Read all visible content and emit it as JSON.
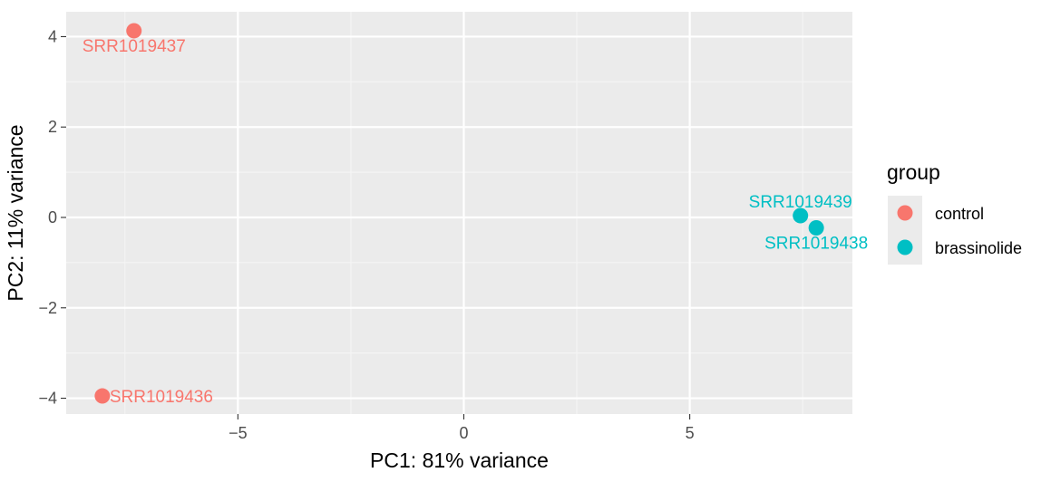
{
  "chart_data": {
    "type": "scatter",
    "xlabel": "PC1: 81% variance",
    "ylabel": "PC2: 11% variance",
    "xlim": [
      -8.8,
      8.6
    ],
    "ylim": [
      -4.35,
      4.55
    ],
    "x_ticks": [
      -5,
      0,
      5
    ],
    "x_tick_labels": [
      "−5",
      "0",
      "5"
    ],
    "y_ticks": [
      -4,
      -2,
      0,
      2,
      4
    ],
    "y_tick_labels": [
      "−4",
      "−2",
      "0",
      "2",
      "4"
    ],
    "grid": true,
    "legend": {
      "title": "group",
      "placement": "right",
      "entries": [
        {
          "name": "control",
          "color": "#F8766D"
        },
        {
          "name": "brassinolide",
          "color": "#00BFC4"
        }
      ]
    },
    "series": [
      {
        "name": "control",
        "color": "#F8766D",
        "points": [
          {
            "label": "SRR1019437",
            "x": -7.3,
            "y": 4.13,
            "label_pos": "below"
          },
          {
            "label": "SRR1019436",
            "x": -8.0,
            "y": -3.95,
            "label_pos": "right"
          }
        ]
      },
      {
        "name": "brassinolide",
        "color": "#00BFC4",
        "points": [
          {
            "label": "SRR1019439",
            "x": 7.45,
            "y": 0.04,
            "label_pos": "above"
          },
          {
            "label": "SRR1019438",
            "x": 7.8,
            "y": -0.23,
            "label_pos": "below"
          }
        ]
      }
    ]
  }
}
